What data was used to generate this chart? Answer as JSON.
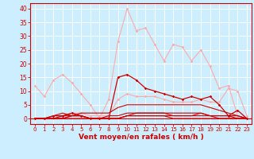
{
  "title": "",
  "xlabel": "Vent moyen/en rafales ( km/h )",
  "ylabel": "",
  "bg_color": "#cceeff",
  "grid_color": "#ffffff",
  "xlim": [
    -0.5,
    23.5
  ],
  "ylim": [
    -2,
    42
  ],
  "yticks": [
    0,
    5,
    10,
    15,
    20,
    25,
    30,
    35,
    40
  ],
  "xticks": [
    0,
    1,
    2,
    3,
    4,
    5,
    6,
    7,
    8,
    9,
    10,
    11,
    12,
    13,
    14,
    15,
    16,
    17,
    18,
    19,
    20,
    21,
    22,
    23
  ],
  "series": [
    {
      "x": [
        0,
        1,
        2,
        3,
        4,
        5,
        6,
        7,
        8,
        9,
        10,
        11,
        12,
        13,
        14,
        15,
        16,
        17,
        18,
        19,
        20,
        21,
        22,
        23
      ],
      "y": [
        12,
        8,
        14,
        16,
        13,
        9,
        5,
        0,
        7,
        28,
        40,
        32,
        33,
        27,
        21,
        27,
        26,
        21,
        25,
        19,
        11,
        12,
        1,
        0
      ],
      "color": "#ffaaaa",
      "lw": 0.8,
      "marker": "D",
      "ms": 1.8,
      "zorder": 2
    },
    {
      "x": [
        0,
        1,
        2,
        3,
        4,
        5,
        6,
        7,
        8,
        9,
        10,
        11,
        12,
        13,
        14,
        15,
        16,
        17,
        18,
        19,
        20,
        21,
        22,
        23
      ],
      "y": [
        0,
        0,
        0,
        1,
        2,
        2,
        1,
        1,
        1,
        7,
        9,
        8,
        8,
        8,
        7,
        6,
        6,
        6,
        7,
        6,
        6,
        11,
        10,
        1
      ],
      "color": "#ffaaaa",
      "lw": 0.8,
      "marker": "D",
      "ms": 1.8,
      "zorder": 2
    },
    {
      "x": [
        0,
        1,
        2,
        3,
        4,
        5,
        6,
        7,
        8,
        9,
        10,
        11,
        12,
        13,
        14,
        15,
        16,
        17,
        18,
        19,
        20,
        21,
        22,
        23
      ],
      "y": [
        0,
        0,
        1,
        1,
        2,
        1,
        0,
        0,
        0,
        15,
        16,
        14,
        11,
        10,
        9,
        8,
        7,
        8,
        7,
        8,
        5,
        1,
        3,
        0
      ],
      "color": "#cc0000",
      "lw": 0.9,
      "marker": "D",
      "ms": 1.8,
      "zorder": 5
    },
    {
      "x": [
        0,
        1,
        2,
        3,
        4,
        5,
        6,
        7,
        8,
        9,
        10,
        11,
        12,
        13,
        14,
        15,
        16,
        17,
        18,
        19,
        20,
        21,
        22,
        23
      ],
      "y": [
        0,
        0,
        0,
        0,
        1,
        1,
        0,
        0,
        0,
        0,
        1,
        1,
        1,
        1,
        1,
        1,
        1,
        1,
        1,
        1,
        0,
        0,
        0,
        0
      ],
      "color": "#cc0000",
      "lw": 0.8,
      "marker": null,
      "ms": 0,
      "zorder": 4
    },
    {
      "x": [
        0,
        1,
        2,
        3,
        4,
        5,
        6,
        7,
        8,
        9,
        10,
        11,
        12,
        13,
        14,
        15,
        16,
        17,
        18,
        19,
        20,
        21,
        22,
        23
      ],
      "y": [
        0,
        0,
        0,
        0,
        1,
        2,
        2,
        2,
        2,
        4,
        5,
        5,
        5,
        5,
        5,
        5,
        5,
        5,
        5,
        4,
        3,
        2,
        1,
        0
      ],
      "color": "#cc0000",
      "lw": 0.8,
      "marker": null,
      "ms": 0,
      "zorder": 3
    },
    {
      "x": [
        0,
        1,
        2,
        3,
        4,
        5,
        6,
        7,
        8,
        9,
        10,
        11,
        12,
        13,
        14,
        15,
        16,
        17,
        18,
        19,
        20,
        21,
        22,
        23
      ],
      "y": [
        0,
        0,
        1,
        2,
        1,
        1,
        0,
        0,
        0,
        0,
        1,
        2,
        2,
        2,
        2,
        2,
        2,
        2,
        2,
        1,
        1,
        1,
        1,
        0
      ],
      "color": "#cc0000",
      "lw": 0.8,
      "marker": null,
      "ms": 0,
      "zorder": 3
    },
    {
      "x": [
        0,
        1,
        2,
        3,
        4,
        5,
        6,
        7,
        8,
        9,
        10,
        11,
        12,
        13,
        14,
        15,
        16,
        17,
        18,
        19,
        20,
        21,
        22,
        23
      ],
      "y": [
        0,
        0,
        0,
        1,
        1,
        1,
        0,
        0,
        1,
        1,
        2,
        2,
        2,
        2,
        2,
        1,
        1,
        1,
        2,
        1,
        1,
        1,
        0,
        0
      ],
      "color": "#cc0000",
      "lw": 0.8,
      "marker": null,
      "ms": 0,
      "zorder": 3
    },
    {
      "x": [
        0,
        1,
        2,
        3,
        4,
        5,
        6,
        7,
        8,
        9,
        10,
        11,
        12,
        13,
        14,
        15,
        16,
        17,
        18,
        19,
        20,
        21,
        22,
        23
      ],
      "y": [
        0,
        0,
        0,
        0,
        0,
        0,
        0,
        0,
        0,
        0,
        1,
        1,
        1,
        1,
        1,
        0,
        0,
        0,
        0,
        0,
        0,
        0,
        0,
        0
      ],
      "color": "#cc0000",
      "lw": 0.8,
      "marker": null,
      "ms": 0,
      "zorder": 3
    }
  ],
  "tick_label_color": "#cc0000",
  "axis_color": "#cc0000",
  "xlabel_color": "#cc0000",
  "xlabel_fontsize": 6.5,
  "ytick_fontsize": 5.5,
  "xtick_fontsize": 5.0
}
